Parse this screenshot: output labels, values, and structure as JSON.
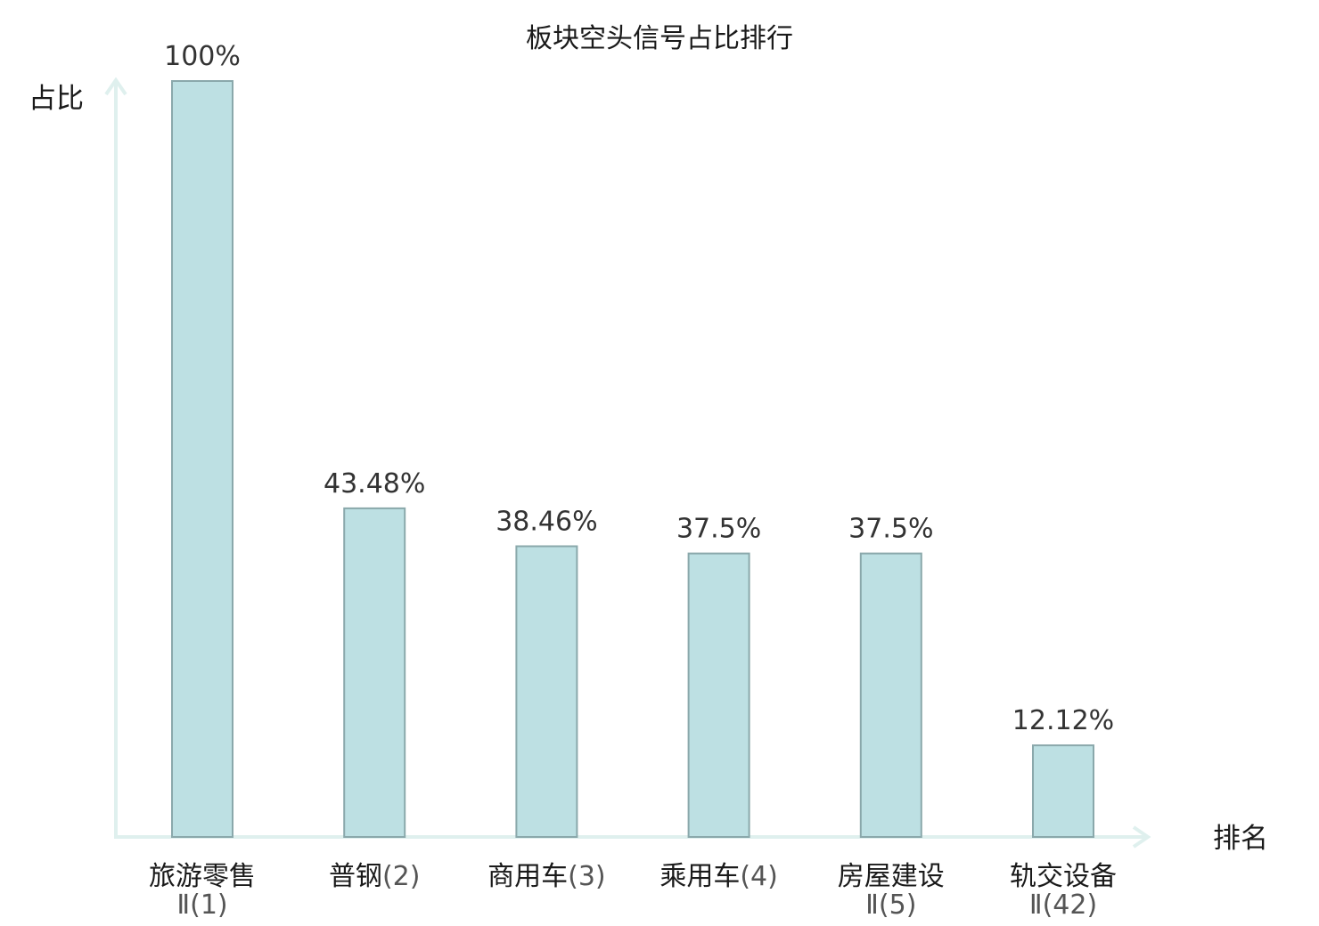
{
  "chart_data": {
    "type": "bar",
    "title": "板块空头信号占比排行",
    "ylabel": "占比",
    "xlabel": "排名",
    "ylim": [
      0,
      100
    ],
    "grid": false,
    "categories": [
      {
        "name": "旅游零售",
        "rank": "Ⅱ(1)",
        "highlight": false
      },
      {
        "name": "普钢",
        "rank": "(2)",
        "highlight": false
      },
      {
        "name": "商用车",
        "rank": "(3)",
        "highlight": false
      },
      {
        "name": "乘用车",
        "rank": "(4)",
        "highlight": false
      },
      {
        "name": "房屋建设",
        "rank": "Ⅱ(5)",
        "highlight": false
      },
      {
        "name": "轨交设备",
        "rank": "Ⅱ(42)",
        "highlight": true
      }
    ],
    "values": [
      100,
      43.48,
      38.46,
      37.5,
      37.5,
      12.12
    ],
    "value_labels": [
      "100%",
      "43.48%",
      "38.46%",
      "37.5%",
      "37.5%",
      "12.12%"
    ],
    "colors": {
      "bar_fill": "#bde0e3",
      "bar_stroke": "#8aa8ab",
      "axis": "#dff0ee",
      "highlight": "#e0141e",
      "text": "#1a1a1a"
    }
  }
}
